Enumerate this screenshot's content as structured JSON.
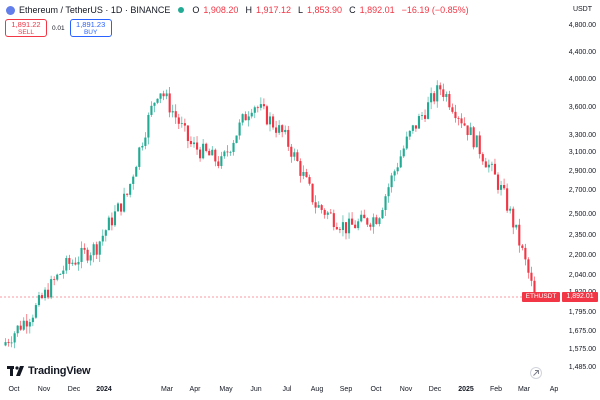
{
  "header": {
    "symbol_title": "Ethereum / TetherUS · 1D · BINANCE",
    "ohlc": [
      {
        "label": "O",
        "value": "1,908.20"
      },
      {
        "label": "H",
        "value": "1,917.12"
      },
      {
        "label": "L",
        "value": "1,853.90"
      },
      {
        "label": "C",
        "value": "1,892.01"
      }
    ],
    "change": "−16.19 (−0.85%)"
  },
  "trade": {
    "sell_price": "1,891.22",
    "sell_label": "SELL",
    "spread": "0.01",
    "buy_price": "1,891.23",
    "buy_label": "BUY"
  },
  "price_axis": {
    "currency": "USDT",
    "labels": [
      "4,800.00",
      "4,400.00",
      "4,000.00",
      "3,600.00",
      "3,300.00",
      "3,100.00",
      "2,900.00",
      "2,700.00",
      "2,500.00",
      "2,350.00",
      "2,200.00",
      "2,040.00",
      "1,920.00",
      "1,795.00",
      "1,675.00",
      "1,575.00",
      "1,485.00"
    ],
    "last_price": "1,892.01",
    "symbol_tag": "ETHUSDT"
  },
  "time_axis": {
    "labels": [
      {
        "text": "Oct",
        "bold": false
      },
      {
        "text": "Nov",
        "bold": false
      },
      {
        "text": "Dec",
        "bold": false
      },
      {
        "text": "2024",
        "bold": true
      },
      {
        "text": "Mar",
        "bold": false
      },
      {
        "text": "Apr",
        "bold": false
      },
      {
        "text": "May",
        "bold": false
      },
      {
        "text": "Jun",
        "bold": false
      },
      {
        "text": "Jul",
        "bold": false
      },
      {
        "text": "Aug",
        "bold": false
      },
      {
        "text": "Sep",
        "bold": false
      },
      {
        "text": "Oct",
        "bold": false
      },
      {
        "text": "Nov",
        "bold": false
      },
      {
        "text": "Dec",
        "bold": false
      },
      {
        "text": "2025",
        "bold": true
      },
      {
        "text": "Feb",
        "bold": false
      },
      {
        "text": "Mar",
        "bold": false
      },
      {
        "text": "Ap",
        "bold": false
      }
    ]
  },
  "brand": {
    "name": "TradingView"
  },
  "colors": {
    "up": "#22ab94",
    "down": "#f23645",
    "accent": "#2962ff"
  },
  "chart_data": {
    "type": "candlestick",
    "title": "Ethereum / TetherUS · 1D · BINANCE",
    "scale": "log",
    "ylim": [
      1450,
      5000
    ],
    "x": [
      "Oct",
      "Nov",
      "Dec",
      "2024",
      "Mar",
      "Apr",
      "May",
      "Jun",
      "Jul",
      "Aug",
      "Sep",
      "Oct",
      "Nov",
      "Dec",
      "2025",
      "Feb",
      "Mar",
      "Ap"
    ],
    "trend_points": [
      {
        "x": "Oct 2023",
        "close": 1600
      },
      {
        "x": "Nov 2023",
        "close": 1800
      },
      {
        "x": "Dec 2023",
        "close": 2100
      },
      {
        "x": "Jan 2024",
        "close": 2250
      },
      {
        "x": "Feb 2024",
        "close": 2700
      },
      {
        "x": "Mar 2024",
        "close": 3900
      },
      {
        "x": "Apr 2024",
        "close": 3200
      },
      {
        "x": "May 2024",
        "close": 3000
      },
      {
        "x": "Jun 2024",
        "close": 3700
      },
      {
        "x": "Jul 2024",
        "close": 3300
      },
      {
        "x": "Aug 2024",
        "close": 2600
      },
      {
        "x": "Sep 2024",
        "close": 2400
      },
      {
        "x": "Oct 2024",
        "close": 2500
      },
      {
        "x": "Nov 2024",
        "close": 3300
      },
      {
        "x": "Dec 2024",
        "close": 3900
      },
      {
        "x": "Jan 2025",
        "close": 3300
      },
      {
        "x": "Feb 2025",
        "close": 2700
      },
      {
        "x": "Mar 2025",
        "close": 1892
      }
    ],
    "last_close": 1892.01
  }
}
